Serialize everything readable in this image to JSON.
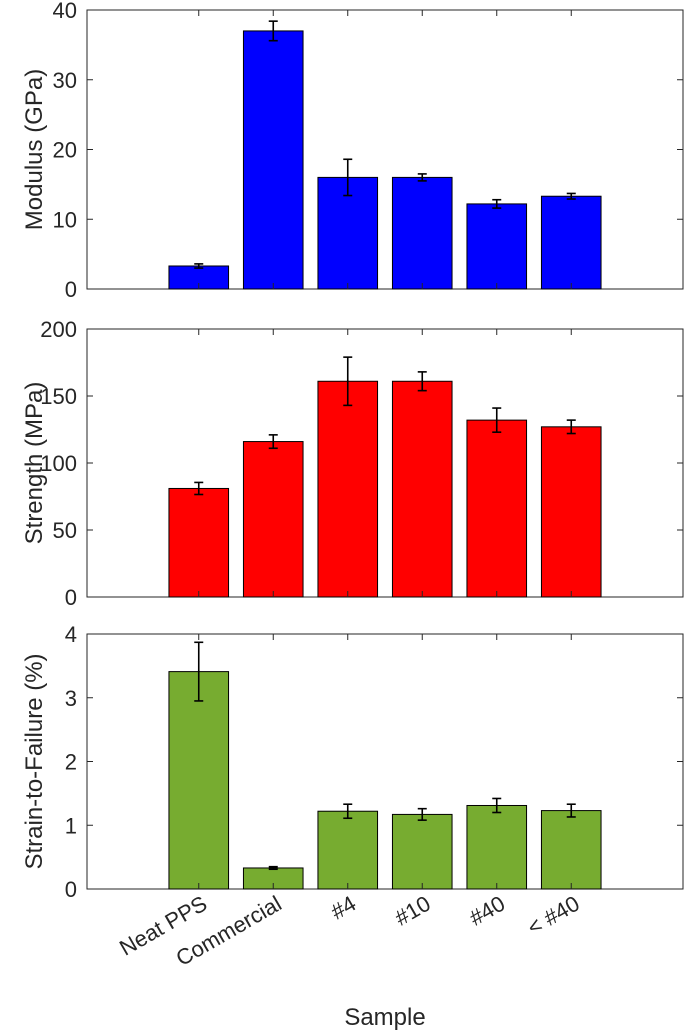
{
  "xlabel": "Sample",
  "categories": [
    "Neat PPS",
    "Commercial",
    "#4",
    "#10",
    "#40",
    "< #40"
  ],
  "chart_data": [
    {
      "type": "bar",
      "ylabel": "Modulus (GPa)",
      "categories": [
        "Neat PPS",
        "Commercial",
        "#4",
        "#10",
        "#40",
        "< #40"
      ],
      "values": [
        3.3,
        37.0,
        16.0,
        16.0,
        12.2,
        13.3
      ],
      "errors": [
        0.3,
        1.4,
        2.6,
        0.5,
        0.6,
        0.4
      ],
      "ylim": [
        0,
        40
      ],
      "yticks": [
        0,
        10,
        20,
        30,
        40
      ],
      "color": "#0000ff"
    },
    {
      "type": "bar",
      "ylabel": "Strength (MPa)",
      "categories": [
        "Neat PPS",
        "Commercial",
        "#4",
        "#10",
        "#40",
        "< #40"
      ],
      "values": [
        81,
        116,
        161,
        161,
        132,
        127
      ],
      "errors": [
        4.5,
        5,
        18,
        7,
        9,
        5
      ],
      "ylim": [
        0,
        200
      ],
      "yticks": [
        0,
        50,
        100,
        150,
        200
      ],
      "color": "#ff0000"
    },
    {
      "type": "bar",
      "ylabel": "Strain-to-Failure (%)",
      "categories": [
        "Neat PPS",
        "Commercial",
        "#4",
        "#10",
        "#40",
        "< #40"
      ],
      "values": [
        3.41,
        0.33,
        1.22,
        1.17,
        1.31,
        1.23
      ],
      "errors": [
        0.46,
        0.02,
        0.11,
        0.09,
        0.11,
        0.1
      ],
      "ylim": [
        0,
        4
      ],
      "yticks": [
        0,
        1,
        2,
        3,
        4
      ],
      "color": "#77ac30"
    }
  ]
}
